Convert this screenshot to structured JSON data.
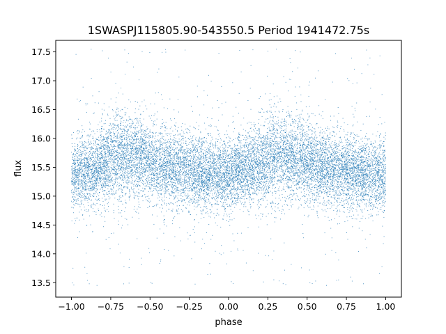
{
  "chart_data": {
    "type": "scatter",
    "title": "1SWASPJ115805.90-543550.5 Period 1941472.75s",
    "xlabel": "phase",
    "ylabel": "flux",
    "xlim": [
      -1.1,
      1.1
    ],
    "ylim": [
      13.25,
      17.7
    ],
    "x_ticks": [
      -1.0,
      -0.75,
      -0.5,
      -0.25,
      0.0,
      0.25,
      0.5,
      0.75,
      1.0
    ],
    "x_tick_labels": [
      "−1.00",
      "−0.75",
      "−0.50",
      "−0.25",
      "0.00",
      "0.25",
      "0.50",
      "0.75",
      "1.00"
    ],
    "y_ticks": [
      13.5,
      14.0,
      14.5,
      15.0,
      15.5,
      16.0,
      16.5,
      17.0,
      17.5
    ],
    "y_tick_labels": [
      "13.5",
      "14.0",
      "14.5",
      "15.0",
      "15.5",
      "16.0",
      "16.5",
      "17.0",
      "17.5"
    ],
    "grid": false,
    "marker_color": "#1f77b4",
    "series": [
      {
        "phase_profile": [
          {
            "phase": -1.0,
            "mean_flux": 15.35,
            "spread": 0.3
          },
          {
            "phase": -0.85,
            "mean_flux": 15.5,
            "spread": 0.32
          },
          {
            "phase": -0.7,
            "mean_flux": 15.7,
            "spread": 0.38
          },
          {
            "phase": -0.55,
            "mean_flux": 15.65,
            "spread": 0.35
          },
          {
            "phase": -0.4,
            "mean_flux": 15.5,
            "spread": 0.33
          },
          {
            "phase": -0.25,
            "mean_flux": 15.45,
            "spread": 0.32
          },
          {
            "phase": -0.1,
            "mean_flux": 15.35,
            "spread": 0.3
          },
          {
            "phase": 0.0,
            "mean_flux": 15.35,
            "spread": 0.3
          },
          {
            "phase": 0.15,
            "mean_flux": 15.5,
            "spread": 0.32
          },
          {
            "phase": 0.3,
            "mean_flux": 15.7,
            "spread": 0.38
          },
          {
            "phase": 0.45,
            "mean_flux": 15.65,
            "spread": 0.35
          },
          {
            "phase": 0.6,
            "mean_flux": 15.5,
            "spread": 0.33
          },
          {
            "phase": 0.75,
            "mean_flux": 15.45,
            "spread": 0.32
          },
          {
            "phase": 0.9,
            "mean_flux": 15.35,
            "spread": 0.3
          },
          {
            "phase": 1.0,
            "mean_flux": 15.35,
            "spread": 0.3
          }
        ],
        "flux_min": 13.45,
        "flux_max": 17.55
      }
    ]
  }
}
